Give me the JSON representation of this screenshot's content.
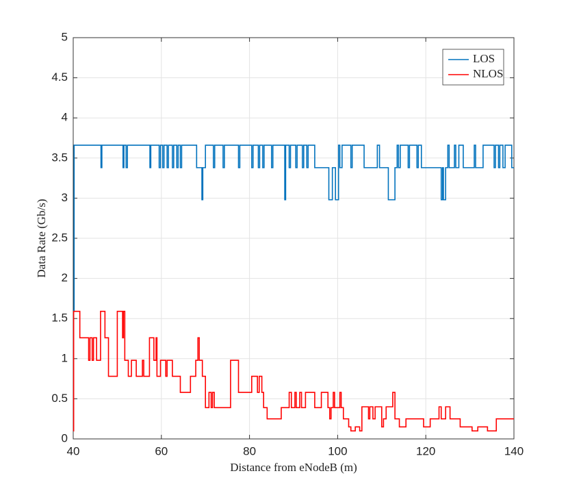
{
  "chart_data": {
    "type": "line",
    "step": "post",
    "xlabel": "Distance from eNodeB (m)",
    "ylabel": "Data Rate (Gb/s)",
    "xlim": [
      40,
      140
    ],
    "xticks": [
      40,
      60,
      80,
      100,
      120,
      140
    ],
    "ylim": [
      0,
      5
    ],
    "yticks": [
      0,
      0.5,
      1,
      1.5,
      2,
      2.5,
      3,
      3.5,
      4,
      4.5,
      5
    ],
    "grid": true,
    "legend": "upper right",
    "series": [
      {
        "name": "LOS",
        "color": "#0072bd",
        "x": [
          40,
          40.2,
          46.3,
          46.5,
          51.3,
          51.5,
          52,
          52.3,
          57.4,
          57.6,
          59.5,
          59.8,
          60.3,
          60.6,
          61.3,
          61.6,
          62.5,
          62.8,
          63.5,
          63.8,
          64.3,
          64.6,
          68,
          69.2,
          69.4,
          70,
          71.8,
          72.1,
          74,
          74.3,
          77.5,
          77.8,
          80.5,
          80.8,
          82,
          82.3,
          83,
          83.3,
          85,
          85.3,
          88,
          88.2,
          89,
          89.3,
          90.5,
          90.8,
          92,
          92.3,
          93,
          93.3,
          94.8,
          98,
          98.8,
          99.5,
          100.2,
          100.5,
          101,
          103,
          103.3,
          106,
          109,
          109.5,
          111.5,
          113,
          113.5,
          113.8,
          114.2,
          116,
          116.3,
          118,
          118.3,
          119,
          123.5,
          123.8,
          124,
          124.5,
          125,
          125.3,
          126.5,
          126.8,
          127.5,
          128.5,
          131,
          131.3,
          133,
          135.5,
          135.8,
          136.5,
          136.8,
          137.5,
          138,
          139.5,
          140
        ],
        "values": [
          1.6,
          3.66,
          3.38,
          3.66,
          3.38,
          3.66,
          3.38,
          3.66,
          3.38,
          3.66,
          3.38,
          3.66,
          3.38,
          3.66,
          3.38,
          3.66,
          3.38,
          3.66,
          3.38,
          3.66,
          3.38,
          3.66,
          3.38,
          2.98,
          3.38,
          3.66,
          3.38,
          3.66,
          3.38,
          3.66,
          3.38,
          3.66,
          3.38,
          3.66,
          3.38,
          3.66,
          3.38,
          3.66,
          3.38,
          3.66,
          2.98,
          3.66,
          3.38,
          3.66,
          3.38,
          3.66,
          3.38,
          3.66,
          3.38,
          3.66,
          3.38,
          2.98,
          3.38,
          2.98,
          3.66,
          3.38,
          3.66,
          3.38,
          3.66,
          3.38,
          3.66,
          3.38,
          2.98,
          3.38,
          3.66,
          3.38,
          3.66,
          3.38,
          3.66,
          3.38,
          3.66,
          3.38,
          2.98,
          3.38,
          2.98,
          3.38,
          3.66,
          3.38,
          3.66,
          3.38,
          3.66,
          3.38,
          3.66,
          3.38,
          3.66,
          3.38,
          3.66,
          3.38,
          3.66,
          3.38,
          3.66,
          3.38,
          3.38
        ]
      },
      {
        "name": "NLOS",
        "color": "#ff0000",
        "x": [
          40,
          40.1,
          41.5,
          43.5,
          43.8,
          44.3,
          44.6,
          45.3,
          46.2,
          47.2,
          48,
          50,
          51.2,
          51.4,
          51.7,
          52.5,
          53.2,
          54.3,
          55.7,
          56,
          57.3,
          58.3,
          58.8,
          59,
          59.8,
          61,
          61.3,
          62.5,
          64.3,
          66.6,
          67.8,
          68.3,
          68.6,
          69.3,
          70,
          70.8,
          71.3,
          71.6,
          72,
          75.7,
          77.5,
          80.5,
          81.8,
          82.2,
          82.8,
          83.2,
          84,
          87.2,
          89,
          89.5,
          90.3,
          90.6,
          91.4,
          91.8,
          92.7,
          94.8,
          96.3,
          97.8,
          98.2,
          98.5,
          99,
          99.3,
          100.5,
          100.8,
          101.3,
          102.5,
          103,
          104,
          105,
          105.5,
          107,
          107.3,
          108,
          108.5,
          110,
          110.4,
          111,
          112.5,
          113,
          114,
          115.5,
          119.5,
          121,
          123,
          123.5,
          124.5,
          125.5,
          127.8,
          130.5,
          131.8,
          134,
          136,
          140
        ],
        "values": [
          0.1,
          1.59,
          1.26,
          0.98,
          1.26,
          0.98,
          1.26,
          0.98,
          1.59,
          1.26,
          0.78,
          1.59,
          1.26,
          1.59,
          0.98,
          0.78,
          0.98,
          0.78,
          0.98,
          0.78,
          1.26,
          0.98,
          1.26,
          0.78,
          0.98,
          0.78,
          0.98,
          0.78,
          0.58,
          0.78,
          0.98,
          1.26,
          0.98,
          0.78,
          0.39,
          0.58,
          0.39,
          0.58,
          0.39,
          0.98,
          0.58,
          0.78,
          0.58,
          0.78,
          0.58,
          0.39,
          0.25,
          0.39,
          0.58,
          0.39,
          0.58,
          0.39,
          0.58,
          0.39,
          0.58,
          0.39,
          0.58,
          0.39,
          0.25,
          0.39,
          0.58,
          0.39,
          0.58,
          0.39,
          0.25,
          0.15,
          0.1,
          0.15,
          0.1,
          0.4,
          0.25,
          0.4,
          0.25,
          0.4,
          0.15,
          0.25,
          0.4,
          0.58,
          0.25,
          0.15,
          0.25,
          0.15,
          0.25,
          0.4,
          0.25,
          0.4,
          0.25,
          0.15,
          0.1,
          0.15,
          0.1,
          0.25,
          0.25
        ]
      }
    ]
  }
}
